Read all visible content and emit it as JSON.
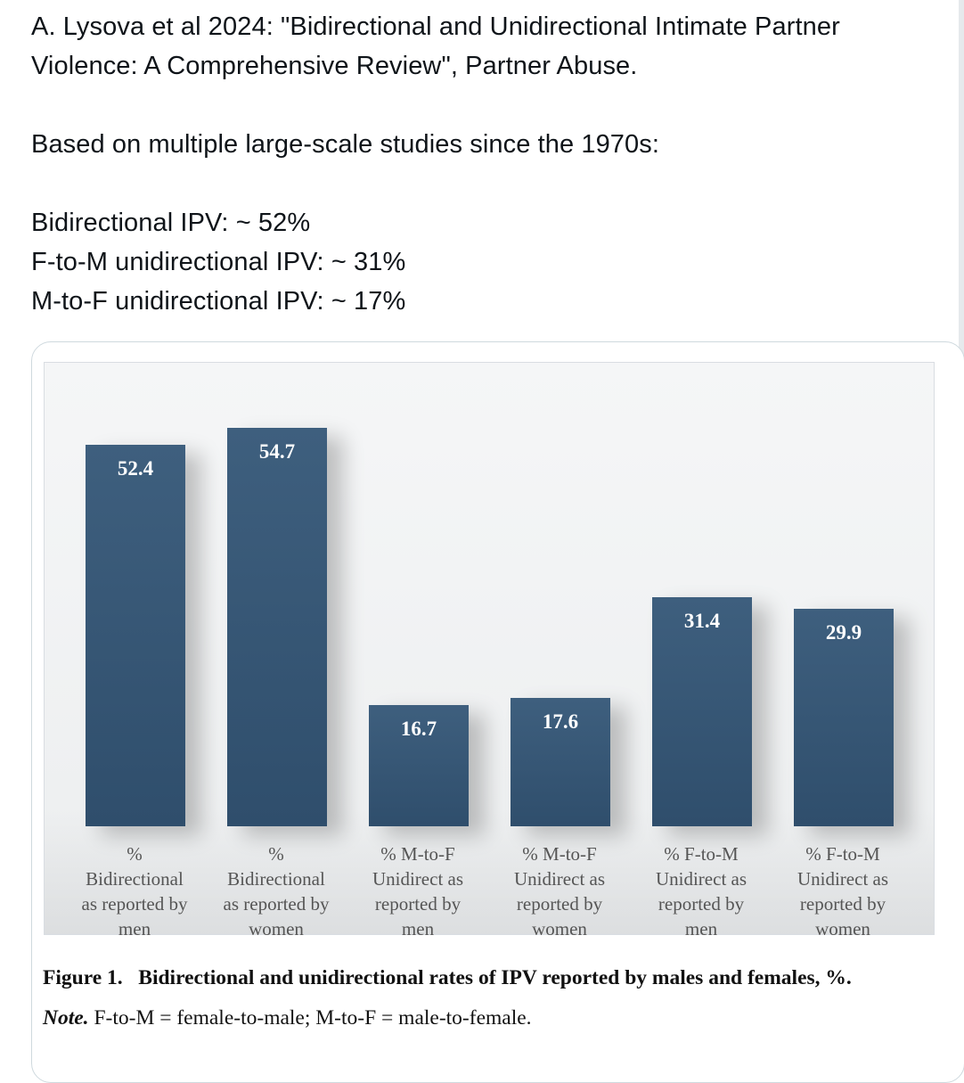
{
  "tweet": {
    "lines": [
      "A. Lysova et al 2024: \"Bidirectional and Unidirectional Intimate Partner",
      "Violence: A Comprehensive Review\", Partner Abuse.",
      "",
      "Based on multiple large-scale studies since the 1970s:",
      "",
      "Bidirectional IPV: ~ 52%",
      "F-to-M unidirectional IPV: ~ 31%",
      "M-to-F unidirectional IPV: ~ 17%"
    ]
  },
  "chart_data": {
    "type": "bar",
    "title": "",
    "xlabel": "",
    "ylabel": "",
    "categories": [
      [
        "%",
        "Bidirectional",
        "as reported by",
        "men"
      ],
      [
        "%",
        "Bidirectional",
        "as reported by",
        "women"
      ],
      [
        "% M-to-F",
        "Unidirect as",
        "reported by",
        "men"
      ],
      [
        "% M-to-F",
        "Unidirect as",
        "reported by",
        "women"
      ],
      [
        "% F-to-M",
        "Unidirect as",
        "reported by",
        "men"
      ],
      [
        "% F-to-M",
        "Unidirect as",
        "reported by",
        "women"
      ]
    ],
    "values": [
      52.4,
      54.7,
      16.7,
      17.6,
      31.4,
      29.9
    ],
    "value_labels": [
      "52.4",
      "54.7",
      "16.7",
      "17.6",
      "31.4",
      "29.9"
    ],
    "ylim": [
      0,
      58
    ],
    "grid": false,
    "bar_color": "#335474"
  },
  "figure_caption": {
    "label": "Figure 1.",
    "text": "Bidirectional and unidirectional rates of IPV reported by males and females, %.",
    "note_label": "Note.",
    "note_text": "F-to-M = female-to-male; M-to-F = male-to-female."
  }
}
